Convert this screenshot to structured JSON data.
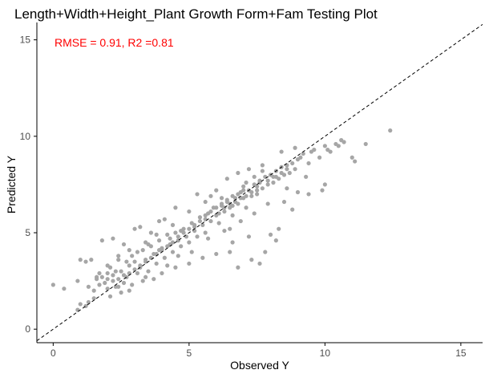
{
  "chart_data": {
    "type": "scatter",
    "title": "Length+Width+Height_Plant Growth Form+Fam Testing Plot",
    "xlabel": "Observed Y",
    "ylabel": "Predicted Y",
    "xlim": [
      -0.6,
      15.8
    ],
    "ylim": [
      -0.7,
      15.9
    ],
    "x_ticks": [
      0,
      5,
      10,
      15
    ],
    "y_ticks": [
      0,
      5,
      10,
      15
    ],
    "grid": false,
    "annotation": {
      "text": "RMSE = 0.91, R2 =0.81",
      "color": "#ff0000"
    },
    "reference_line": {
      "type": "identity",
      "style": "dashed",
      "color": "#000000"
    },
    "point_color": "#a6a6a6",
    "points": [
      [
        0.0,
        2.3
      ],
      [
        0.4,
        2.1
      ],
      [
        0.9,
        1.0
      ],
      [
        1.0,
        1.3
      ],
      [
        1.2,
        1.2
      ],
      [
        1.3,
        1.4
      ],
      [
        1.5,
        2.0
      ],
      [
        1.7,
        2.3
      ],
      [
        1.6,
        2.6
      ],
      [
        1.8,
        2.7
      ],
      [
        2.0,
        2.9
      ],
      [
        2.1,
        3.2
      ],
      [
        2.2,
        2.5
      ],
      [
        2.3,
        2.2
      ],
      [
        2.4,
        3.6
      ],
      [
        2.5,
        3.0
      ],
      [
        2.6,
        2.4
      ],
      [
        2.7,
        2.7
      ],
      [
        2.8,
        3.3
      ],
      [
        2.9,
        3.8
      ],
      [
        3.0,
        3.5
      ],
      [
        3.1,
        2.9
      ],
      [
        3.2,
        3.2
      ],
      [
        3.3,
        4.1
      ],
      [
        3.4,
        3.6
      ],
      [
        3.5,
        3.0
      ],
      [
        3.6,
        4.3
      ],
      [
        3.7,
        3.9
      ],
      [
        3.8,
        3.4
      ],
      [
        3.9,
        4.6
      ],
      [
        4.0,
        4.2
      ],
      [
        4.1,
        3.7
      ],
      [
        4.2,
        4.9
      ],
      [
        4.3,
        4.4
      ],
      [
        4.4,
        4.0
      ],
      [
        4.5,
        5.0
      ],
      [
        4.6,
        4.6
      ],
      [
        4.7,
        4.3
      ],
      [
        4.8,
        5.2
      ],
      [
        4.9,
        4.8
      ],
      [
        5.0,
        4.5
      ],
      [
        5.1,
        5.5
      ],
      [
        5.2,
        5.1
      ],
      [
        5.3,
        4.8
      ],
      [
        5.4,
        5.8
      ],
      [
        5.5,
        5.4
      ],
      [
        5.6,
        5.0
      ],
      [
        5.7,
        6.0
      ],
      [
        5.8,
        5.6
      ],
      [
        5.9,
        6.3
      ],
      [
        6.0,
        5.9
      ],
      [
        6.1,
        5.5
      ],
      [
        6.2,
        6.4
      ],
      [
        6.3,
        6.1
      ],
      [
        6.4,
        6.7
      ],
      [
        6.5,
        6.3
      ],
      [
        6.6,
        5.9
      ],
      [
        6.7,
        6.8
      ],
      [
        6.8,
        6.5
      ],
      [
        6.9,
        7.1
      ],
      [
        7.0,
        6.8
      ],
      [
        7.1,
        6.3
      ],
      [
        7.2,
        7.2
      ],
      [
        7.3,
        6.9
      ],
      [
        7.4,
        7.5
      ],
      [
        7.5,
        7.0
      ],
      [
        7.6,
        7.7
      ],
      [
        7.7,
        7.3
      ],
      [
        7.8,
        7.9
      ],
      [
        7.9,
        7.5
      ],
      [
        8.0,
        8.0
      ],
      [
        8.1,
        7.6
      ],
      [
        8.2,
        8.2
      ],
      [
        8.3,
        7.8
      ],
      [
        8.4,
        8.4
      ],
      [
        8.5,
        8.0
      ],
      [
        8.6,
        8.5
      ],
      [
        8.7,
        8.1
      ],
      [
        8.8,
        8.6
      ],
      [
        8.9,
        8.3
      ],
      [
        9.0,
        8.8
      ],
      [
        9.2,
        9.1
      ],
      [
        9.4,
        8.6
      ],
      [
        9.6,
        9.3
      ],
      [
        9.8,
        8.9
      ],
      [
        10.0,
        9.5
      ],
      [
        10.2,
        9.2
      ],
      [
        10.4,
        9.6
      ],
      [
        10.6,
        9.8
      ],
      [
        11.1,
        8.7
      ],
      [
        12.4,
        10.3
      ],
      [
        11.0,
        8.9
      ],
      [
        10.5,
        9.5
      ],
      [
        9.9,
        7.2
      ],
      [
        10.0,
        7.5
      ],
      [
        9.3,
        7.9
      ],
      [
        8.3,
        5.2
      ],
      [
        7.6,
        3.4
      ],
      [
        7.2,
        4.8
      ],
      [
        6.6,
        4.5
      ],
      [
        6.5,
        5.2
      ],
      [
        6.2,
        6.8
      ],
      [
        5.8,
        6.9
      ],
      [
        5.3,
        7.0
      ],
      [
        4.5,
        6.3
      ],
      [
        4.1,
        5.7
      ],
      [
        3.9,
        5.6
      ],
      [
        3.6,
        5.0
      ],
      [
        3.2,
        5.3
      ],
      [
        3.0,
        5.2
      ],
      [
        2.6,
        4.4
      ],
      [
        2.2,
        4.7
      ],
      [
        1.8,
        4.6
      ],
      [
        1.4,
        3.6
      ],
      [
        1.2,
        3.5
      ],
      [
        1.0,
        3.6
      ],
      [
        0.9,
        2.5
      ],
      [
        1.5,
        1.6
      ],
      [
        2.0,
        2.1
      ],
      [
        2.4,
        2.2
      ],
      [
        2.8,
        2.0
      ],
      [
        3.4,
        2.7
      ],
      [
        4.0,
        2.9
      ],
      [
        4.5,
        3.2
      ],
      [
        5.0,
        3.4
      ],
      [
        5.5,
        3.7
      ],
      [
        6.0,
        3.9
      ],
      [
        6.5,
        4.0
      ],
      [
        6.8,
        3.2
      ],
      [
        7.3,
        3.6
      ],
      [
        7.8,
        4.0
      ],
      [
        8.2,
        4.6
      ],
      [
        8.0,
        4.9
      ],
      [
        8.8,
        6.2
      ],
      [
        9.4,
        7.0
      ],
      [
        8.6,
        7.3
      ],
      [
        9.0,
        7.1
      ],
      [
        8.5,
        6.6
      ],
      [
        7.9,
        6.5
      ],
      [
        7.4,
        6.0
      ],
      [
        6.9,
        5.6
      ],
      [
        6.3,
        5.1
      ],
      [
        5.7,
        4.7
      ],
      [
        5.1,
        4.0
      ],
      [
        4.6,
        3.8
      ],
      [
        4.2,
        3.3
      ],
      [
        3.7,
        2.6
      ],
      [
        3.3,
        2.5
      ],
      [
        2.9,
        2.3
      ],
      [
        2.5,
        1.9
      ],
      [
        2.1,
        1.7
      ],
      [
        1.9,
        2.4
      ],
      [
        1.6,
        2.7
      ],
      [
        2.3,
        3.0
      ],
      [
        2.7,
        3.5
      ],
      [
        3.1,
        4.0
      ],
      [
        3.5,
        4.4
      ],
      [
        3.9,
        4.1
      ],
      [
        4.3,
        4.7
      ],
      [
        4.7,
        5.1
      ],
      [
        5.2,
        5.3
      ],
      [
        5.6,
        5.7
      ],
      [
        6.1,
        6.0
      ],
      [
        6.6,
        6.4
      ],
      [
        7.0,
        7.2
      ],
      [
        7.5,
        7.4
      ],
      [
        8.1,
        7.9
      ],
      [
        8.6,
        8.3
      ],
      [
        9.1,
        8.9
      ],
      [
        9.5,
        9.2
      ],
      [
        10.1,
        9.3
      ],
      [
        10.7,
        9.7
      ],
      [
        11.5,
        9.6
      ],
      [
        8.4,
        9.2
      ],
      [
        8.9,
        9.4
      ],
      [
        7.7,
        8.5
      ],
      [
        7.2,
        8.3
      ],
      [
        6.8,
        8.1
      ],
      [
        6.4,
        7.8
      ],
      [
        6.0,
        7.2
      ],
      [
        5.6,
        6.6
      ],
      [
        5.0,
        6.1
      ],
      [
        4.4,
        5.4
      ],
      [
        3.8,
        4.9
      ],
      [
        3.4,
        4.5
      ],
      [
        2.8,
        4.1
      ],
      [
        2.4,
        3.8
      ],
      [
        2.0,
        3.3
      ],
      [
        1.7,
        2.9
      ],
      [
        1.3,
        2.2
      ],
      [
        7.1,
        7.6
      ],
      [
        7.4,
        7.9
      ],
      [
        7.7,
        8.2
      ],
      [
        7.5,
        7.2
      ],
      [
        7.3,
        7.1
      ],
      [
        7.1,
        6.9
      ],
      [
        6.9,
        6.8
      ],
      [
        6.7,
        6.6
      ],
      [
        6.5,
        6.5
      ],
      [
        6.3,
        6.3
      ],
      [
        7.6,
        7.6
      ],
      [
        7.9,
        7.7
      ],
      [
        8.2,
        7.9
      ],
      [
        8.4,
        8.1
      ],
      [
        7.0,
        7.4
      ],
      [
        6.8,
        7.0
      ],
      [
        6.6,
        6.9
      ],
      [
        6.4,
        6.6
      ],
      [
        6.2,
        6.5
      ],
      [
        6.0,
        6.3
      ],
      [
        5.8,
        6.1
      ],
      [
        5.6,
        5.9
      ],
      [
        5.4,
        5.6
      ],
      [
        5.2,
        5.4
      ],
      [
        5.0,
        5.2
      ],
      [
        4.8,
        5.0
      ],
      [
        4.6,
        4.8
      ],
      [
        4.4,
        4.5
      ],
      [
        4.2,
        4.3
      ],
      [
        4.0,
        4.1
      ],
      [
        3.8,
        3.9
      ],
      [
        3.6,
        3.7
      ],
      [
        3.4,
        3.5
      ],
      [
        3.2,
        3.3
      ],
      [
        3.0,
        3.1
      ],
      [
        2.8,
        2.9
      ],
      [
        2.6,
        2.8
      ],
      [
        2.4,
        2.6
      ],
      [
        2.2,
        2.8
      ],
      [
        2.0,
        2.6
      ]
    ]
  }
}
